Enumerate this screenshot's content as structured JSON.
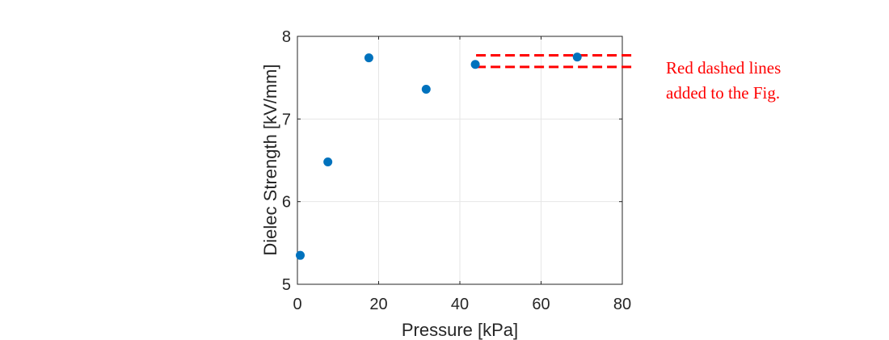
{
  "chart_data": {
    "type": "scatter",
    "xlabel": "Pressure [kPa]",
    "ylabel": "Dielec Strength [kV/mm]",
    "xlim": [
      0,
      80
    ],
    "ylim": [
      5,
      8
    ],
    "xticks": [
      0,
      20,
      40,
      60,
      80
    ],
    "yticks": [
      5,
      6,
      7,
      8
    ],
    "grid": true,
    "marker_color": "#0072bd",
    "points": [
      {
        "x": 0.7,
        "y": 5.35
      },
      {
        "x": 7.5,
        "y": 6.48
      },
      {
        "x": 17.6,
        "y": 7.74
      },
      {
        "x": 31.7,
        "y": 7.36
      },
      {
        "x": 43.8,
        "y": 7.66
      },
      {
        "x": 68.9,
        "y": 7.75
      }
    ],
    "reference_lines": {
      "color": "#ff0000",
      "style": "dashed",
      "y_values": [
        7.77,
        7.63
      ],
      "x_range": [
        44,
        82.5
      ]
    }
  },
  "annotation": {
    "lines": [
      "Red dashed lines",
      "added to the Fig."
    ],
    "color": "#ff0000"
  }
}
